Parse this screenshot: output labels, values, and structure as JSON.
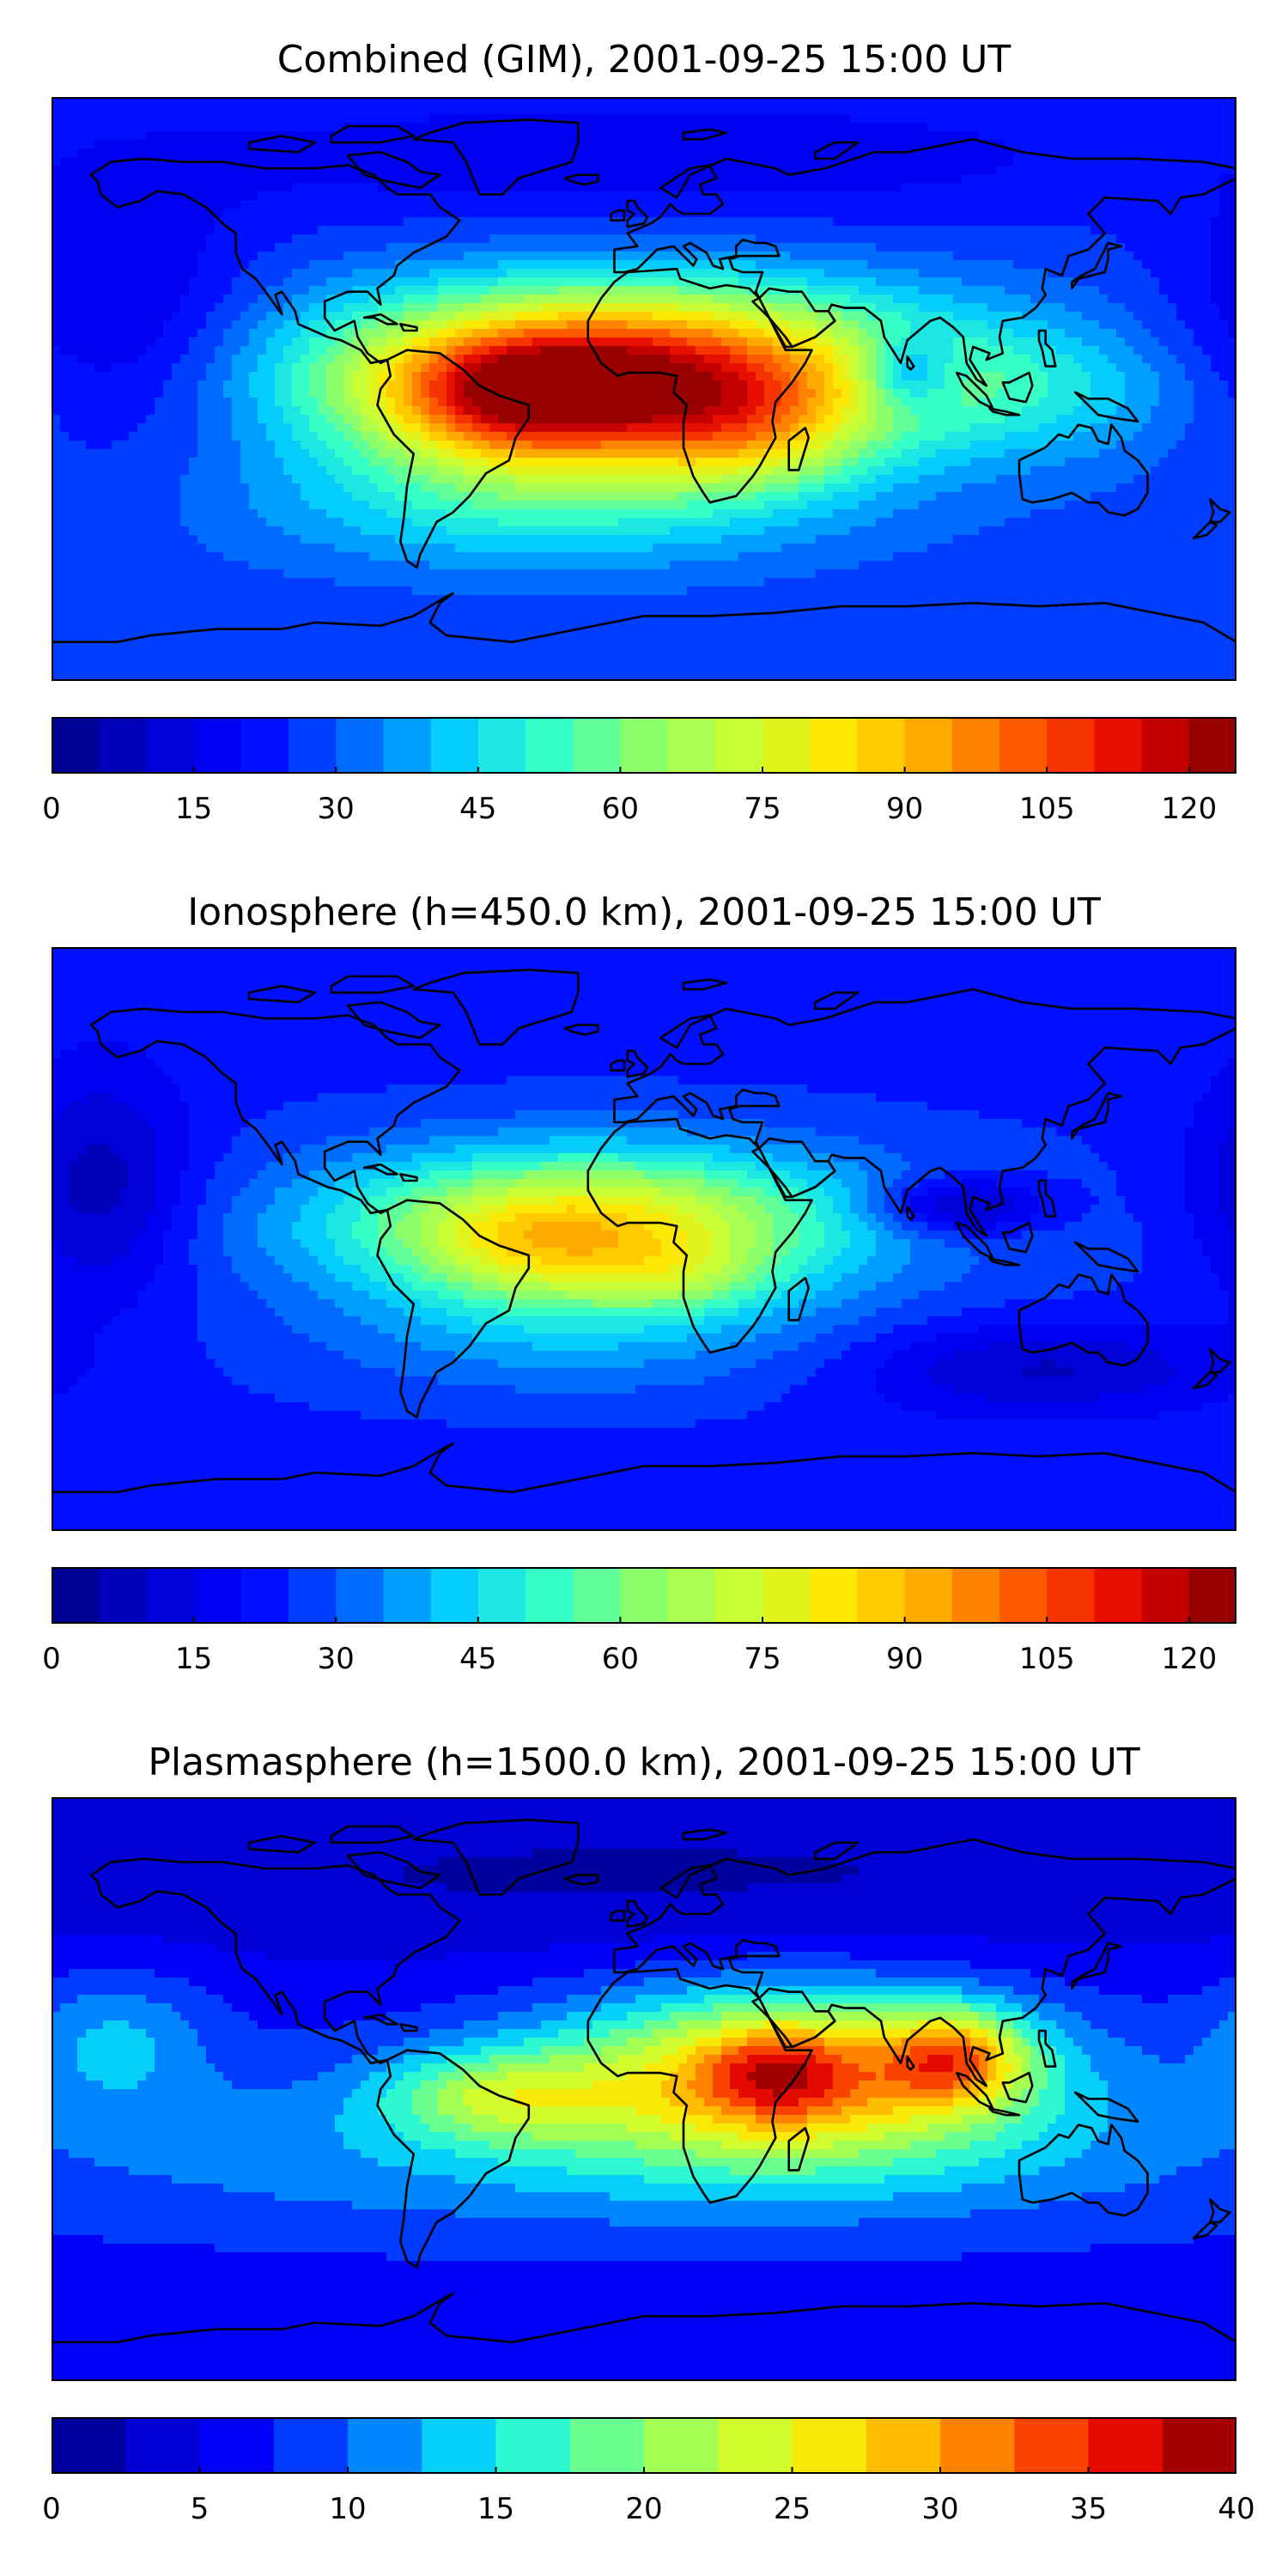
{
  "colors": {
    "jet_stops": [
      "#00007f",
      "#0000d0",
      "#0000ff",
      "#0060ff",
      "#00c8ff",
      "#33ffcc",
      "#8cff6a",
      "#ccff33",
      "#ffe600",
      "#ffa200",
      "#ff4c00",
      "#e00000",
      "#7f0000"
    ],
    "coastline": "#000000",
    "frame": "#000000"
  },
  "panels": [
    {
      "id": "combined",
      "title": "Combined (GIM), 2001-09-25 15:00 UT",
      "colorbar": {
        "min": 0,
        "max": 125,
        "levels": 25,
        "tick_labels": [
          "0",
          "15",
          "30",
          "45",
          "60",
          "75",
          "90",
          "105",
          "120"
        ],
        "tick_values": [
          0,
          15,
          30,
          45,
          60,
          75,
          90,
          105,
          120
        ]
      },
      "field": {
        "base": 30,
        "blobs": [
          {
            "lon": -5,
            "lat": 5,
            "amp": 88,
            "slon": 60,
            "slat": 18
          },
          {
            "lon": -40,
            "lat": -5,
            "amp": 35,
            "slon": 28,
            "slat": 14
          },
          {
            "lon": 30,
            "lat": -15,
            "amp": 25,
            "slon": 25,
            "slat": 12
          },
          {
            "lon": 80,
            "lat": 5,
            "amp": -25,
            "slon": 10,
            "slat": 8
          },
          {
            "lon": -160,
            "lat": 20,
            "amp": -15,
            "slon": 30,
            "slat": 30
          },
          {
            "lon": 120,
            "lat": 0,
            "amp": 12,
            "slon": 35,
            "slat": 15
          },
          {
            "lon": -30,
            "lat": -35,
            "amp": 20,
            "slon": 60,
            "slat": 15
          },
          {
            "lon": 0,
            "lat": 70,
            "amp": -10,
            "slon": 120,
            "slat": 15
          }
        ]
      }
    },
    {
      "id": "ionosphere",
      "title": "Ionosphere  (h=450.0 km), 2001-09-25 15:00 UT",
      "colorbar": {
        "min": 0,
        "max": 125,
        "levels": 25,
        "tick_labels": [
          "0",
          "15",
          "30",
          "45",
          "60",
          "75",
          "90",
          "105",
          "120"
        ],
        "tick_values": [
          0,
          15,
          30,
          45,
          60,
          75,
          90,
          105,
          120
        ]
      },
      "field": {
        "base": 26,
        "blobs": [
          {
            "lon": -15,
            "lat": 5,
            "amp": 55,
            "slon": 55,
            "slat": 16
          },
          {
            "lon": -35,
            "lat": -5,
            "amp": 15,
            "slon": 25,
            "slat": 12
          },
          {
            "lon": 10,
            "lat": -12,
            "amp": 15,
            "slon": 20,
            "slat": 8
          },
          {
            "lon": 95,
            "lat": 10,
            "amp": -22,
            "slon": 18,
            "slat": 6
          },
          {
            "lon": -165,
            "lat": 15,
            "amp": -18,
            "slon": 20,
            "slat": 25
          },
          {
            "lon": 120,
            "lat": -40,
            "amp": -15,
            "slon": 40,
            "slat": 10
          },
          {
            "lon": -20,
            "lat": -30,
            "amp": 12,
            "slon": 55,
            "slat": 14
          }
        ]
      }
    },
    {
      "id": "plasmasphere",
      "title": "Plasmasphere (h=1500.0 km), 2001-09-25 15:00 UT",
      "colorbar": {
        "min": 0,
        "max": 40,
        "levels": 16,
        "tick_labels": [
          "0",
          "5",
          "10",
          "15",
          "20",
          "25",
          "30",
          "35",
          "40"
        ],
        "tick_values": [
          0,
          5,
          10,
          15,
          20,
          25,
          30,
          35,
          40
        ]
      },
      "field": {
        "base": 7,
        "blobs": [
          {
            "lon": 45,
            "lat": 5,
            "amp": 22,
            "slon": 50,
            "slat": 18
          },
          {
            "lon": 95,
            "lat": 10,
            "amp": 14,
            "slon": 15,
            "slat": 10
          },
          {
            "lon": -45,
            "lat": -2,
            "amp": 10,
            "slon": 25,
            "slat": 10
          },
          {
            "lon": 40,
            "lat": 5,
            "amp": 8,
            "slon": 15,
            "slat": 10
          },
          {
            "lon": -160,
            "lat": 15,
            "amp": 6,
            "slon": 20,
            "slat": 15
          },
          {
            "lon": 0,
            "lat": -20,
            "amp": 6,
            "slon": 140,
            "slat": 18
          },
          {
            "lon": 0,
            "lat": 65,
            "amp": -4,
            "slon": 200,
            "slat": 20
          }
        ]
      }
    }
  ]
}
